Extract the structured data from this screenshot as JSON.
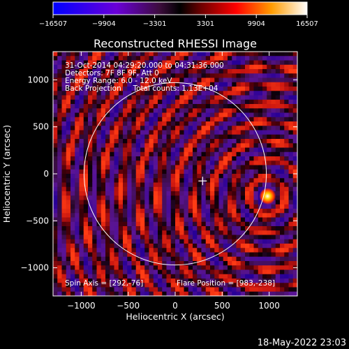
{
  "chart_data": {
    "type": "heatmap",
    "title": "Reconstructed RHESSI Image",
    "xlabel": "Heliocentric X (arcsec)",
    "ylabel": "Heliocentric Y (arcsec)",
    "xlim": [
      -1300,
      1300
    ],
    "ylim": [
      -1300,
      1300
    ],
    "x_ticks": [
      -1000,
      -500,
      0,
      500,
      1000
    ],
    "x_tick_labels": [
      "−1000",
      "−500",
      "0",
      "500",
      "1000"
    ],
    "y_ticks": [
      -1000,
      -500,
      0,
      500,
      1000
    ],
    "y_tick_labels": [
      "−1000",
      "−500",
      "0",
      "500",
      "1000"
    ],
    "colorbar": {
      "min": -16507,
      "max": 16507,
      "ticks": [
        -16507,
        -9904,
        -3301,
        3301,
        9904,
        16507
      ],
      "tick_labels": [
        "−16507",
        "−9904",
        "−3301",
        "3301",
        "9904",
        "16507"
      ]
    },
    "annotations": [
      "31-Oct-2014 04:29:20.000 to 04:31:36.000",
      "Detectors: 7F 8F 9F, Att 0",
      "Energy Range: 6.0 - 12.0 keV",
      "Back Projection     Total counts: 1.13E+04"
    ],
    "spin_axis_label": "Spin Axis = [292,-76]",
    "flare_position_label": "Flare Position = [983,-238]",
    "spin_axis": [
      292,
      -76
    ],
    "flare_position": [
      983,
      -238
    ],
    "solar_disk_radius_arcsec": 970,
    "timestamp": "18-May-2022 23:03"
  }
}
